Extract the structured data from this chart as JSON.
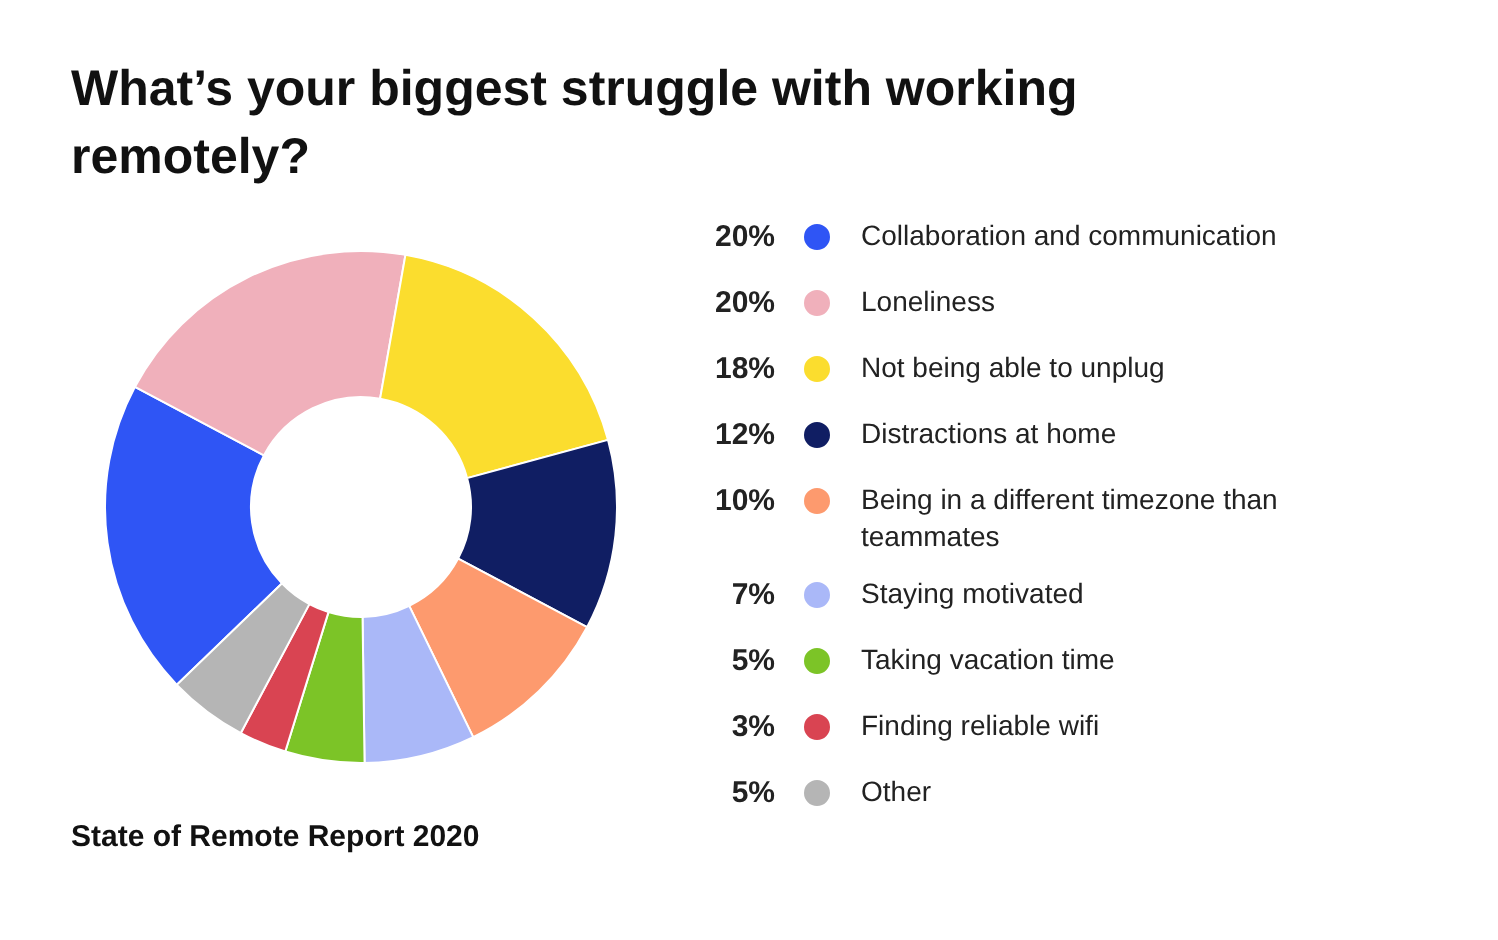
{
  "chart_data": {
    "type": "donut",
    "title": "What’s your biggest struggle with working remotely?",
    "categories": [
      "Collaboration and communication",
      "Loneliness",
      "Not being able to unplug",
      "Distractions at home",
      "Being in a different timezone than teammates",
      "Staying motivated",
      "Taking vacation time",
      "Finding reliable wifi",
      "Other"
    ],
    "values": [
      20,
      20,
      18,
      12,
      10,
      7,
      5,
      3,
      5
    ],
    "colors": [
      "#2f55f5",
      "#f0b0bb",
      "#fbdd2e",
      "#101e63",
      "#fd9a6e",
      "#aab8f8",
      "#7cc427",
      "#d94452",
      "#b5b5b5"
    ],
    "data_labels": true,
    "value_labels": [
      "20%",
      "20%",
      "18%",
      "12%",
      "10%",
      "7%",
      "5%",
      "3%",
      "5%"
    ],
    "legend": "right",
    "annotations": [
      "State of Remote Report 2020"
    ]
  }
}
